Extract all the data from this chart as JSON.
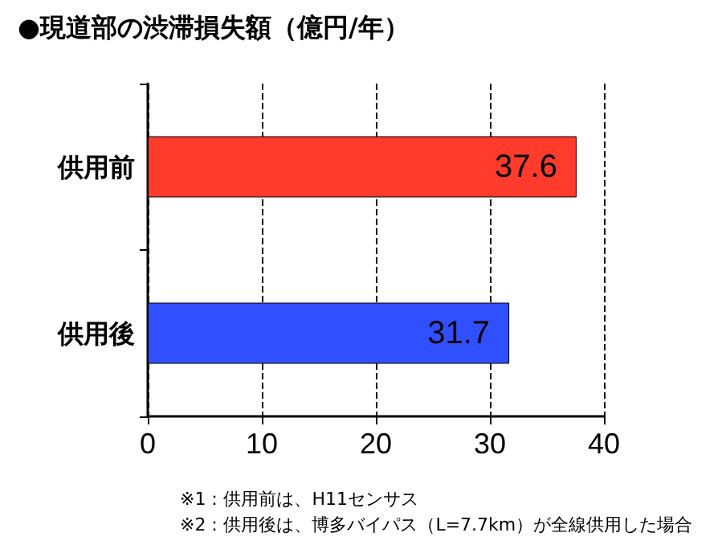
{
  "chart_data": {
    "type": "bar",
    "orientation": "horizontal",
    "title": "●現道部の渋滞損失額（億円/年）",
    "categories": [
      "供用前",
      "供用後"
    ],
    "values": [
      37.6,
      31.7
    ],
    "colors": [
      "#ff3b2b",
      "#3050ff"
    ],
    "xlim": [
      0,
      40
    ],
    "xticks": [
      0,
      10,
      20,
      30,
      40
    ],
    "grid": "x",
    "data_labels": true,
    "annotations": [
      "※1：供用前は、H11センサス",
      "※2：供用後は、博多バイパス（L=7.7km）が全線供用した場合"
    ]
  }
}
